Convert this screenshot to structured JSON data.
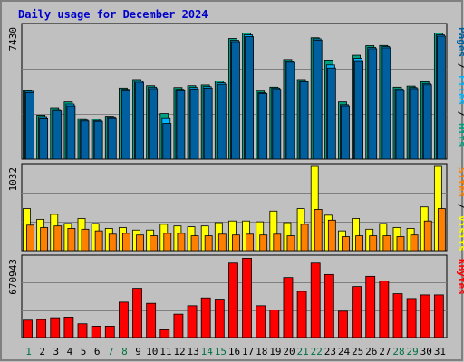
{
  "chart_data": [
    {
      "type": "bar",
      "title": "Daily usage for December 2024",
      "categories": [
        "1",
        "2",
        "3",
        "4",
        "5",
        "6",
        "7",
        "8",
        "9",
        "10",
        "11",
        "12",
        "13",
        "14",
        "15",
        "16",
        "17",
        "18",
        "19",
        "20",
        "21",
        "22",
        "23",
        "24",
        "25",
        "26",
        "27",
        "28",
        "29",
        "30",
        "31"
      ],
      "weekend_days": [
        "1",
        "7",
        "8",
        "14",
        "15",
        "21",
        "22",
        "28",
        "29"
      ],
      "ylim": [
        0,
        7430
      ],
      "y_top_label": "7430",
      "right_label": [
        "Pages",
        "Files",
        "Hits"
      ],
      "series": [
        {
          "name": "Hits",
          "color": "#00a080",
          "values": [
            3820,
            2440,
            2860,
            3180,
            2250,
            2230,
            2380,
            3950,
            4420,
            4080,
            2530,
            3980,
            4080,
            4120,
            4340,
            6700,
            7000,
            3780,
            4000,
            5530,
            4420,
            6740,
            5500,
            3180,
            5770,
            6300,
            6310,
            4000,
            4060,
            4300,
            7000
          ]
        },
        {
          "name": "Files",
          "color": "#00b4ff",
          "values": [
            3770,
            2360,
            2760,
            3060,
            2170,
            2150,
            2350,
            3880,
            4350,
            4000,
            2300,
            3880,
            3980,
            4030,
            4240,
            6600,
            6900,
            3690,
            3950,
            5450,
            4350,
            6680,
            5230,
            3020,
            5600,
            6200,
            6250,
            3900,
            3980,
            4200,
            6900
          ]
        },
        {
          "name": "Pages",
          "color": "#00609f",
          "values": [
            3700,
            2290,
            2680,
            2960,
            2120,
            2100,
            2300,
            3800,
            4270,
            3920,
            1980,
            3800,
            3900,
            3950,
            4160,
            6530,
            6800,
            3640,
            3880,
            5380,
            4300,
            6610,
            5060,
            2960,
            5470,
            6130,
            6180,
            3820,
            3920,
            4130,
            6830
          ]
        }
      ]
    },
    {
      "type": "bar",
      "ylim": [
        0,
        1032
      ],
      "y_top_label": "1032",
      "right_label": [
        "Sites",
        "Visits"
      ],
      "series": [
        {
          "name": "Visits",
          "color": "#ffff00",
          "values": [
            510,
            380,
            440,
            330,
            390,
            330,
            270,
            280,
            250,
            250,
            320,
            300,
            290,
            300,
            340,
            360,
            360,
            350,
            480,
            340,
            510,
            1032,
            430,
            240,
            390,
            260,
            330,
            280,
            270,
            530,
            1032
          ]
        },
        {
          "name": "Sites",
          "color": "#ff8000",
          "values": [
            310,
            280,
            300,
            270,
            260,
            240,
            200,
            210,
            190,
            180,
            210,
            210,
            180,
            180,
            200,
            190,
            200,
            190,
            200,
            180,
            320,
            500,
            370,
            170,
            180,
            180,
            180,
            170,
            190,
            360,
            510
          ]
        }
      ]
    },
    {
      "type": "bar",
      "ylim": [
        0,
        670943
      ],
      "y_top_label": "670943",
      "right_label": [
        "KBytes"
      ],
      "series": [
        {
          "name": "KBytes",
          "color": "#ff0000",
          "values": [
            145000,
            150000,
            165000,
            170000,
            115000,
            95000,
            95000,
            295000,
            410000,
            285000,
            65000,
            195000,
            265000,
            330000,
            320000,
            620000,
            660000,
            265000,
            230000,
            500000,
            385000,
            620000,
            525000,
            220000,
            425000,
            510000,
            470000,
            365000,
            325000,
            355000,
            355000
          ]
        }
      ]
    }
  ]
}
